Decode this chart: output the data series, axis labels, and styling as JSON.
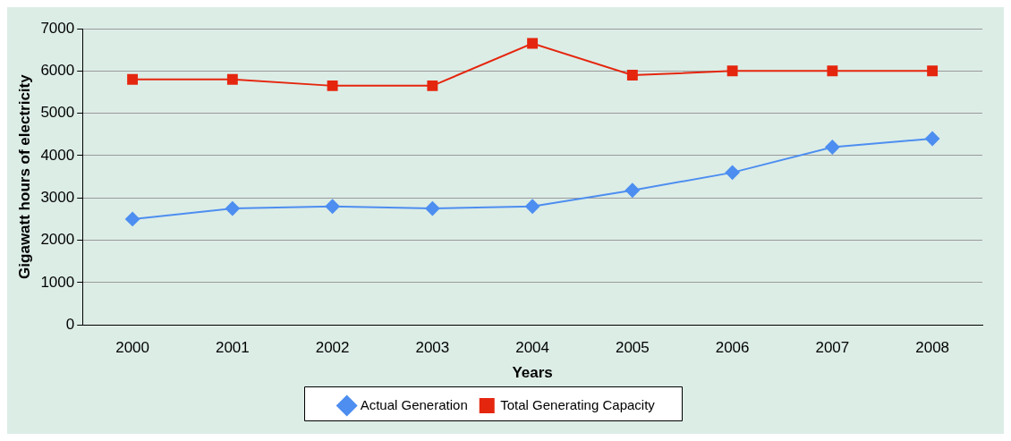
{
  "chart_data": {
    "type": "line",
    "xlabel": "Years",
    "ylabel": "Gigawatt hours of electricity",
    "categories": [
      "2000",
      "2001",
      "2002",
      "2003",
      "2004",
      "2005",
      "2006",
      "2007",
      "2008"
    ],
    "series": [
      {
        "name": "Actual Generation",
        "color": "#4d8ef0",
        "marker": "diamond",
        "values": [
          2500,
          2750,
          2800,
          2750,
          2800,
          3180,
          3600,
          4200,
          4400
        ]
      },
      {
        "name": "Total Generating Capacity",
        "color": "#e5260e",
        "marker": "square",
        "values": [
          5800,
          5800,
          5650,
          5650,
          6650,
          5900,
          6000,
          6000,
          6000
        ]
      }
    ],
    "ylim": [
      0,
      7000
    ],
    "yticks": [
      0,
      1000,
      2000,
      3000,
      4000,
      5000,
      6000,
      7000
    ],
    "grid": "y",
    "legend": "bottom"
  }
}
